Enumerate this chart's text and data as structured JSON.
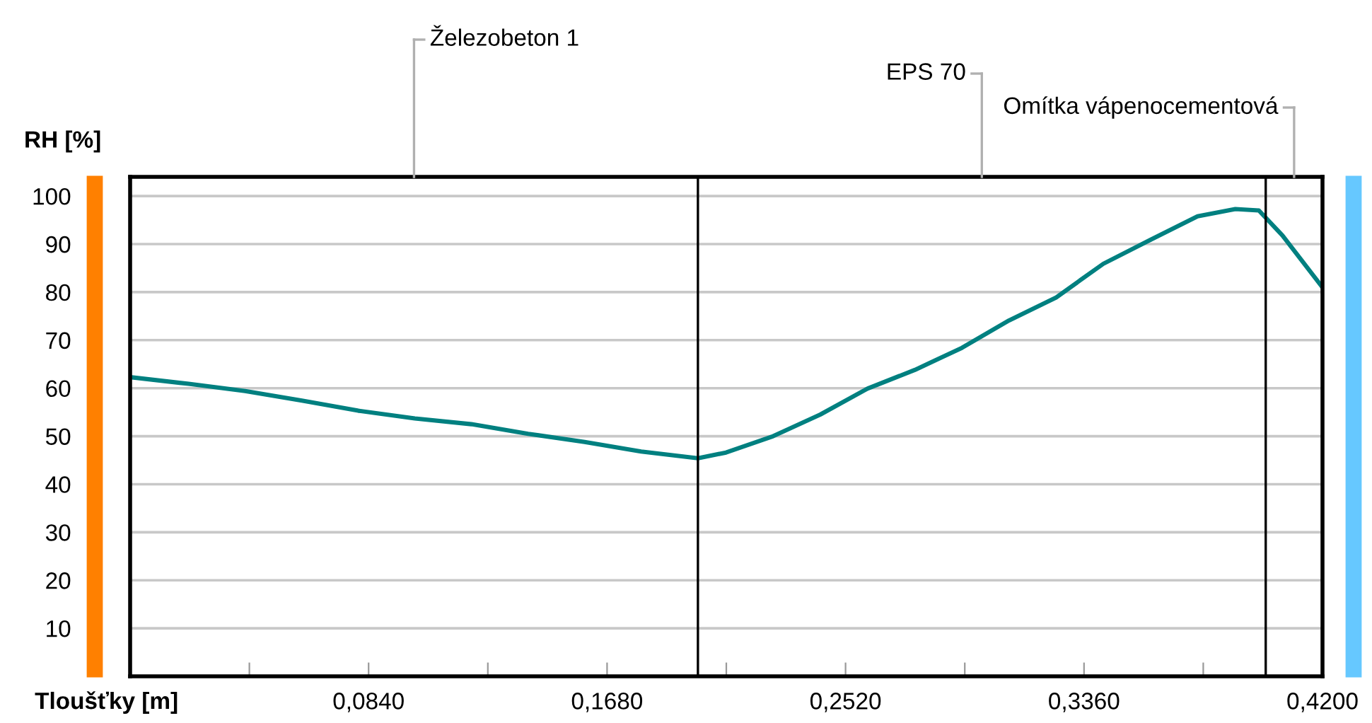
{
  "chart_data": {
    "type": "line",
    "xlabel": "Tloušťky [m]",
    "ylabel": "RH [%]",
    "x": [
      0.0,
      0.0206,
      0.0405,
      0.0605,
      0.0804,
      0.1003,
      0.1202,
      0.1402,
      0.1601,
      0.18,
      0.2,
      0.2099,
      0.2265,
      0.2431,
      0.2597,
      0.2764,
      0.293,
      0.3096,
      0.3262,
      0.3428,
      0.3594,
      0.376,
      0.3893,
      0.3976,
      0.4059,
      0.42
    ],
    "series": [
      {
        "color": "#008080",
        "values": [
          62.3,
          60.9,
          59.4,
          57.4,
          55.3,
          53.7,
          52.5,
          50.5,
          48.8,
          46.8,
          45.4,
          46.6,
          50.0,
          54.5,
          59.9,
          63.8,
          68.4,
          74.1,
          78.9,
          85.9,
          90.9,
          95.8,
          97.3,
          97.0,
          91.8,
          81.0
        ]
      }
    ],
    "xlim": [
      0,
      0.42
    ],
    "ylim": [
      0,
      104
    ],
    "xticks": [
      {
        "value": 0.042,
        "label": null
      },
      {
        "value": 0.084,
        "label": "0,0840"
      },
      {
        "value": 0.126,
        "label": null
      },
      {
        "value": 0.168,
        "label": "0,1680"
      },
      {
        "value": 0.21,
        "label": null
      },
      {
        "value": 0.252,
        "label": "0,2520"
      },
      {
        "value": 0.294,
        "label": null
      },
      {
        "value": 0.336,
        "label": "0,3360"
      },
      {
        "value": 0.378,
        "label": null
      },
      {
        "value": 0.42,
        "label": "0,4200"
      }
    ],
    "yticks": [
      10,
      20,
      30,
      40,
      50,
      60,
      70,
      80,
      90,
      100
    ],
    "grid": "y",
    "ref_lines": [
      {
        "axis": "x",
        "value": 0.2,
        "color": "#000000"
      },
      {
        "axis": "x",
        "value": 0.4,
        "color": "#000000"
      }
    ],
    "annotations": [
      "Železobeton 1",
      "EPS 70",
      "Omítka vápenocementová"
    ]
  }
}
